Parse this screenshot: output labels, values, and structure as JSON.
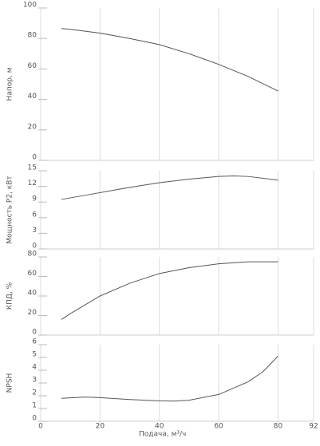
{
  "chart_data": [
    {
      "type": "line",
      "ylabel": "Напор, м",
      "x": [
        7,
        10,
        20,
        30,
        40,
        50,
        60,
        70,
        80
      ],
      "values": [
        86.5,
        86,
        83.5,
        80,
        76,
        70,
        63,
        55,
        45.5
      ],
      "color": "#555555",
      "xlim": [
        0,
        92
      ],
      "ylim": [
        0,
        100
      ],
      "yticks": [
        0,
        20,
        40,
        60,
        80,
        100
      ]
    },
    {
      "type": "line",
      "ylabel": "Мощность P2, кВт",
      "x": [
        7,
        20,
        30,
        40,
        50,
        60,
        65,
        70,
        80
      ],
      "values": [
        9.5,
        10.8,
        11.8,
        12.7,
        13.4,
        13.9,
        14,
        13.9,
        13.2
      ],
      "color": "#555555",
      "xlim": [
        0,
        92
      ],
      "ylim": [
        0,
        15
      ],
      "yticks": [
        0,
        3,
        6,
        9,
        12,
        15
      ]
    },
    {
      "type": "line",
      "ylabel": "КПД, %",
      "x": [
        7,
        10,
        20,
        30,
        40,
        50,
        60,
        70,
        80
      ],
      "values": [
        16,
        22,
        40,
        53,
        63,
        69,
        73,
        75,
        75
      ],
      "color": "#555555",
      "xlim": [
        0,
        92
      ],
      "ylim": [
        0,
        80
      ],
      "yticks": [
        0,
        20,
        40,
        60,
        80
      ]
    },
    {
      "type": "line",
      "ylabel": "NPSH",
      "xlabel": "Подача, м³/ч",
      "x": [
        7,
        15,
        20,
        30,
        40,
        45,
        50,
        60,
        70,
        75,
        80
      ],
      "values": [
        1.8,
        1.9,
        1.85,
        1.7,
        1.6,
        1.58,
        1.65,
        2.1,
        3.1,
        3.9,
        5.1
      ],
      "color": "#555555",
      "xlim": [
        0,
        92
      ],
      "ylim": [
        0,
        6
      ],
      "yticks": [
        0,
        1,
        2,
        3,
        4,
        5,
        6
      ],
      "xticks": [
        0,
        20,
        40,
        60,
        80,
        92
      ]
    }
  ]
}
